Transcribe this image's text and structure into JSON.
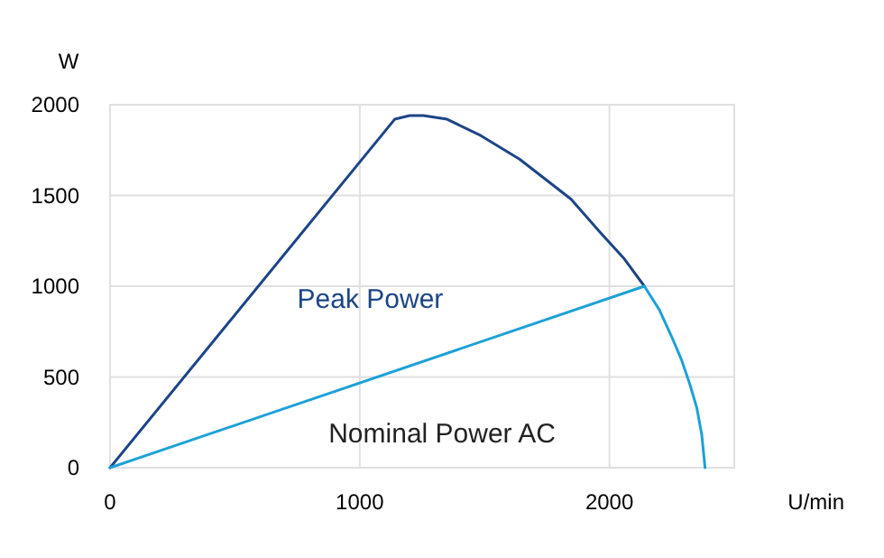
{
  "chart_data": {
    "type": "line",
    "xlabel": "U/min",
    "ylabel": "W",
    "xlim": [
      0,
      2500
    ],
    "ylim": [
      0,
      2000
    ],
    "xticks": [
      0,
      1000,
      2000
    ],
    "yticks": [
      0,
      500,
      1000,
      1500,
      2000
    ],
    "grid": true,
    "marker": "none",
    "line_style": "solid",
    "series": [
      {
        "name": "Peak Power",
        "color": "#1c4587",
        "x": [
          0,
          1140,
          1200,
          1255,
          1350,
          1485,
          1640,
          1846,
          1961,
          2060,
          2140
        ],
        "values": [
          0,
          1920,
          1940,
          1940,
          1920,
          1830,
          1700,
          1480,
          1300,
          1150,
          1000
        ]
      },
      {
        "name": "Nominal Power AC",
        "color": "#1da1d8",
        "x": [
          0,
          2140,
          2200,
          2250,
          2290,
          2322,
          2350,
          2370,
          2383
        ],
        "values": [
          0,
          1000,
          870,
          720,
          590,
          460,
          330,
          180,
          0
        ]
      }
    ]
  }
}
